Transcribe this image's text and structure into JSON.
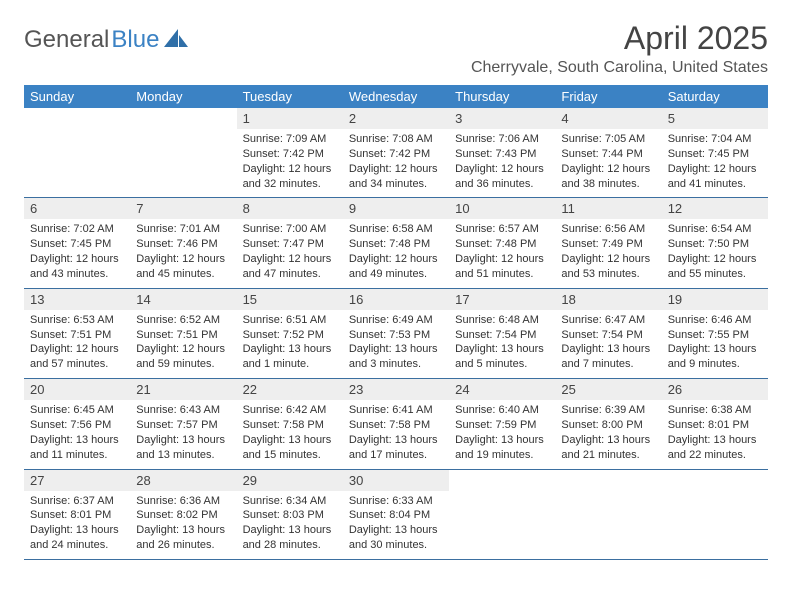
{
  "logo": {
    "text_general": "General",
    "text_blue": "Blue"
  },
  "title": "April 2025",
  "location": "Cherryvale, South Carolina, United States",
  "colors": {
    "header_bg": "#3b82c4",
    "header_fg": "#ffffff",
    "daynum_bg": "#eeeeee",
    "row_border": "#3b6fa0",
    "page_bg": "#ffffff"
  },
  "fonts": {
    "base": "Arial, Helvetica, sans-serif",
    "title_pt": 32,
    "location_pt": 16,
    "th_pt": 13,
    "body_pt": 11
  },
  "weekdays": [
    "Sunday",
    "Monday",
    "Tuesday",
    "Wednesday",
    "Thursday",
    "Friday",
    "Saturday"
  ],
  "weeks": [
    [
      null,
      null,
      {
        "n": "1",
        "sr": "Sunrise: 7:09 AM",
        "ss": "Sunset: 7:42 PM",
        "dl": "Daylight: 12 hours and 32 minutes."
      },
      {
        "n": "2",
        "sr": "Sunrise: 7:08 AM",
        "ss": "Sunset: 7:42 PM",
        "dl": "Daylight: 12 hours and 34 minutes."
      },
      {
        "n": "3",
        "sr": "Sunrise: 7:06 AM",
        "ss": "Sunset: 7:43 PM",
        "dl": "Daylight: 12 hours and 36 minutes."
      },
      {
        "n": "4",
        "sr": "Sunrise: 7:05 AM",
        "ss": "Sunset: 7:44 PM",
        "dl": "Daylight: 12 hours and 38 minutes."
      },
      {
        "n": "5",
        "sr": "Sunrise: 7:04 AM",
        "ss": "Sunset: 7:45 PM",
        "dl": "Daylight: 12 hours and 41 minutes."
      }
    ],
    [
      {
        "n": "6",
        "sr": "Sunrise: 7:02 AM",
        "ss": "Sunset: 7:45 PM",
        "dl": "Daylight: 12 hours and 43 minutes."
      },
      {
        "n": "7",
        "sr": "Sunrise: 7:01 AM",
        "ss": "Sunset: 7:46 PM",
        "dl": "Daylight: 12 hours and 45 minutes."
      },
      {
        "n": "8",
        "sr": "Sunrise: 7:00 AM",
        "ss": "Sunset: 7:47 PM",
        "dl": "Daylight: 12 hours and 47 minutes."
      },
      {
        "n": "9",
        "sr": "Sunrise: 6:58 AM",
        "ss": "Sunset: 7:48 PM",
        "dl": "Daylight: 12 hours and 49 minutes."
      },
      {
        "n": "10",
        "sr": "Sunrise: 6:57 AM",
        "ss": "Sunset: 7:48 PM",
        "dl": "Daylight: 12 hours and 51 minutes."
      },
      {
        "n": "11",
        "sr": "Sunrise: 6:56 AM",
        "ss": "Sunset: 7:49 PM",
        "dl": "Daylight: 12 hours and 53 minutes."
      },
      {
        "n": "12",
        "sr": "Sunrise: 6:54 AM",
        "ss": "Sunset: 7:50 PM",
        "dl": "Daylight: 12 hours and 55 minutes."
      }
    ],
    [
      {
        "n": "13",
        "sr": "Sunrise: 6:53 AM",
        "ss": "Sunset: 7:51 PM",
        "dl": "Daylight: 12 hours and 57 minutes."
      },
      {
        "n": "14",
        "sr": "Sunrise: 6:52 AM",
        "ss": "Sunset: 7:51 PM",
        "dl": "Daylight: 12 hours and 59 minutes."
      },
      {
        "n": "15",
        "sr": "Sunrise: 6:51 AM",
        "ss": "Sunset: 7:52 PM",
        "dl": "Daylight: 13 hours and 1 minute."
      },
      {
        "n": "16",
        "sr": "Sunrise: 6:49 AM",
        "ss": "Sunset: 7:53 PM",
        "dl": "Daylight: 13 hours and 3 minutes."
      },
      {
        "n": "17",
        "sr": "Sunrise: 6:48 AM",
        "ss": "Sunset: 7:54 PM",
        "dl": "Daylight: 13 hours and 5 minutes."
      },
      {
        "n": "18",
        "sr": "Sunrise: 6:47 AM",
        "ss": "Sunset: 7:54 PM",
        "dl": "Daylight: 13 hours and 7 minutes."
      },
      {
        "n": "19",
        "sr": "Sunrise: 6:46 AM",
        "ss": "Sunset: 7:55 PM",
        "dl": "Daylight: 13 hours and 9 minutes."
      }
    ],
    [
      {
        "n": "20",
        "sr": "Sunrise: 6:45 AM",
        "ss": "Sunset: 7:56 PM",
        "dl": "Daylight: 13 hours and 11 minutes."
      },
      {
        "n": "21",
        "sr": "Sunrise: 6:43 AM",
        "ss": "Sunset: 7:57 PM",
        "dl": "Daylight: 13 hours and 13 minutes."
      },
      {
        "n": "22",
        "sr": "Sunrise: 6:42 AM",
        "ss": "Sunset: 7:58 PM",
        "dl": "Daylight: 13 hours and 15 minutes."
      },
      {
        "n": "23",
        "sr": "Sunrise: 6:41 AM",
        "ss": "Sunset: 7:58 PM",
        "dl": "Daylight: 13 hours and 17 minutes."
      },
      {
        "n": "24",
        "sr": "Sunrise: 6:40 AM",
        "ss": "Sunset: 7:59 PM",
        "dl": "Daylight: 13 hours and 19 minutes."
      },
      {
        "n": "25",
        "sr": "Sunrise: 6:39 AM",
        "ss": "Sunset: 8:00 PM",
        "dl": "Daylight: 13 hours and 21 minutes."
      },
      {
        "n": "26",
        "sr": "Sunrise: 6:38 AM",
        "ss": "Sunset: 8:01 PM",
        "dl": "Daylight: 13 hours and 22 minutes."
      }
    ],
    [
      {
        "n": "27",
        "sr": "Sunrise: 6:37 AM",
        "ss": "Sunset: 8:01 PM",
        "dl": "Daylight: 13 hours and 24 minutes."
      },
      {
        "n": "28",
        "sr": "Sunrise: 6:36 AM",
        "ss": "Sunset: 8:02 PM",
        "dl": "Daylight: 13 hours and 26 minutes."
      },
      {
        "n": "29",
        "sr": "Sunrise: 6:34 AM",
        "ss": "Sunset: 8:03 PM",
        "dl": "Daylight: 13 hours and 28 minutes."
      },
      {
        "n": "30",
        "sr": "Sunrise: 6:33 AM",
        "ss": "Sunset: 8:04 PM",
        "dl": "Daylight: 13 hours and 30 minutes."
      },
      null,
      null,
      null
    ]
  ]
}
